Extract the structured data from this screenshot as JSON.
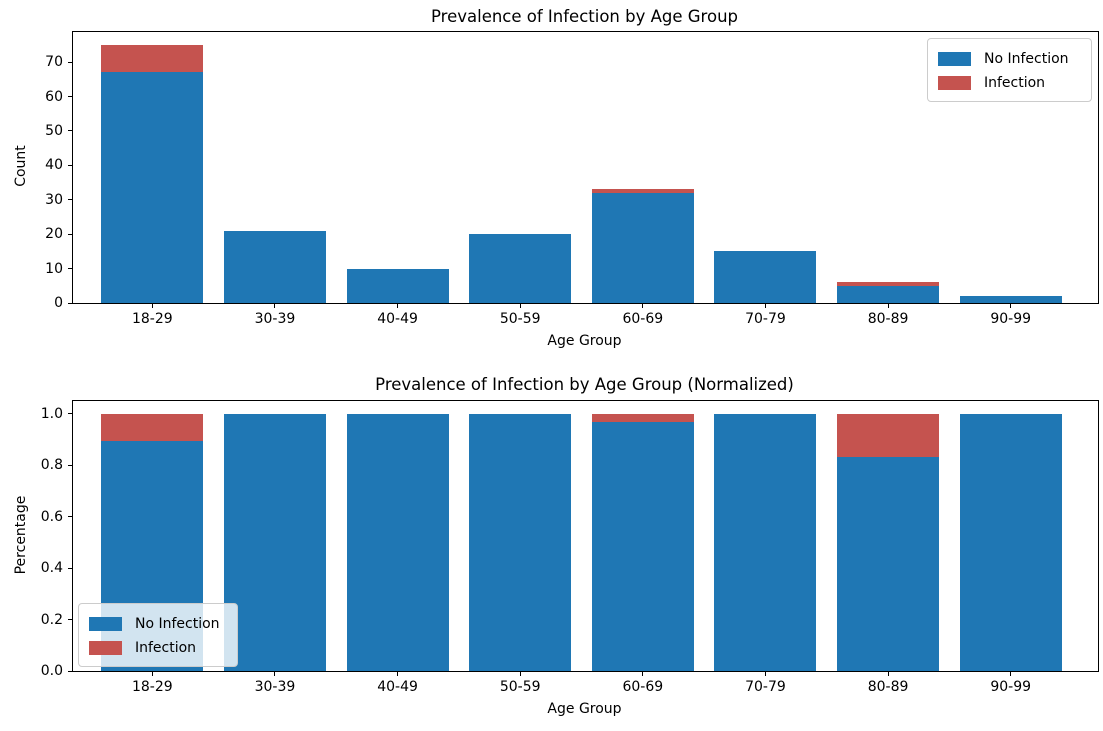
{
  "figure": {
    "background": "#ffffff",
    "accent_colors": {
      "no_infection_blue": "#1f77b4",
      "infection_red": "#c5534f",
      "legend_border": "#cccccc",
      "axis_black": "#000000"
    }
  },
  "chart_data": [
    {
      "type": "bar",
      "stacked": true,
      "title": "Prevalence of Infection by Age Group",
      "xlabel": "Age Group",
      "ylabel": "Count",
      "categories": [
        "18-29",
        "30-39",
        "40-49",
        "50-59",
        "60-69",
        "70-79",
        "80-89",
        "90-99"
      ],
      "series": [
        {
          "name": "No Infection",
          "color": "#1f77b4",
          "values": [
            67,
            21,
            10,
            20,
            32,
            15,
            5,
            2
          ]
        },
        {
          "name": "Infection",
          "color": "#c5534f",
          "values": [
            8,
            0,
            0,
            0,
            1,
            0,
            1,
            0
          ]
        }
      ],
      "ylim": [
        0,
        78.75
      ],
      "ytick_labels": [
        "0",
        "10",
        "20",
        "30",
        "40",
        "50",
        "60",
        "70"
      ],
      "legend_position": "upper right",
      "grid": false
    },
    {
      "type": "bar",
      "stacked": true,
      "title": "Prevalence of Infection by Age Group (Normalized)",
      "xlabel": "Age Group",
      "ylabel": "Percentage",
      "categories": [
        "18-29",
        "30-39",
        "40-49",
        "50-59",
        "60-69",
        "70-79",
        "80-89",
        "90-99"
      ],
      "series": [
        {
          "name": "No Infection",
          "color": "#1f77b4",
          "values": [
            0.8933,
            1.0,
            1.0,
            1.0,
            0.9697,
            1.0,
            0.8333,
            1.0
          ]
        },
        {
          "name": "Infection",
          "color": "#c5534f",
          "values": [
            0.1067,
            0,
            0,
            0,
            0.0303,
            0,
            0.1667,
            0
          ]
        }
      ],
      "ylim": [
        0,
        1.05
      ],
      "ytick_labels": [
        "0.0",
        "0.2",
        "0.4",
        "0.6",
        "0.8",
        "1.0"
      ],
      "legend_position": "lower left",
      "grid": false
    }
  ]
}
